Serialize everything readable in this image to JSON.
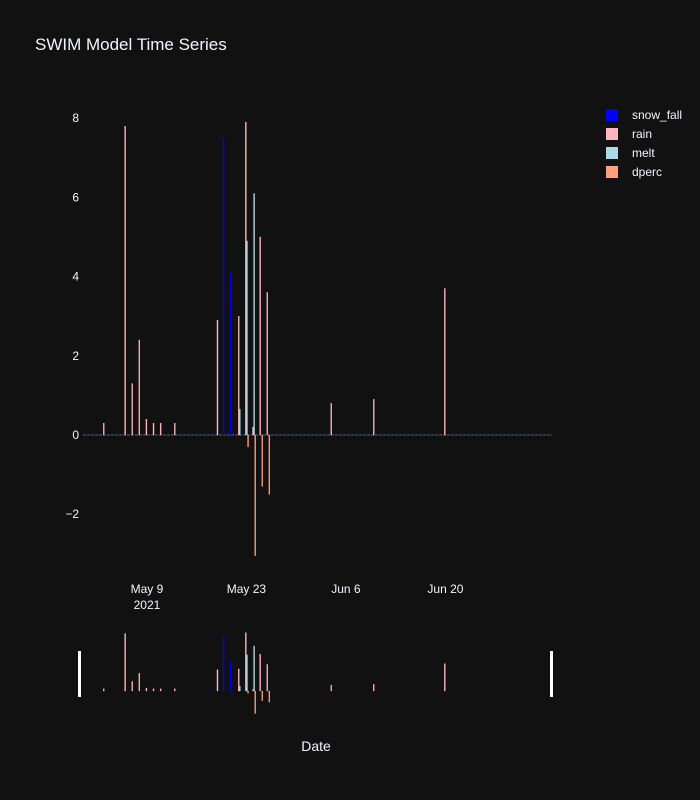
{
  "chart_data": {
    "type": "bar",
    "title": "SWIM Model Time Series",
    "xlabel": "Date",
    "ylabel": "",
    "x_range": [
      "2021-04-30",
      "2021-07-05"
    ],
    "ylim": [
      -3.5,
      8.5
    ],
    "y_ticks": [
      -2,
      0,
      2,
      4,
      6,
      8
    ],
    "y_tick_labels": [
      "−2",
      "0",
      "2",
      "4",
      "6",
      "8"
    ],
    "x_ticks": [
      {
        "date": "2021-05-09",
        "label": "May 9",
        "sublabel": "2021"
      },
      {
        "date": "2021-05-23",
        "label": "May 23",
        "sublabel": ""
      },
      {
        "date": "2021-06-06",
        "label": "Jun 6",
        "sublabel": ""
      },
      {
        "date": "2021-06-20",
        "label": "Jun 20",
        "sublabel": ""
      }
    ],
    "grid": false,
    "legend_position": "top-right",
    "rangeslider": true,
    "series": [
      {
        "name": "snow_fall",
        "color": "#0000ff",
        "points": [
          {
            "x": "2021-05-20",
            "y": 7.5
          },
          {
            "x": "2021-05-21",
            "y": 4.1
          }
        ]
      },
      {
        "name": "rain",
        "color": "#ffb6c1",
        "points": [
          {
            "x": "2021-05-03",
            "y": 0.3
          },
          {
            "x": "2021-05-06",
            "y": 7.8
          },
          {
            "x": "2021-05-07",
            "y": 1.3
          },
          {
            "x": "2021-05-08",
            "y": 2.4
          },
          {
            "x": "2021-05-09",
            "y": 0.4
          },
          {
            "x": "2021-05-10",
            "y": 0.3
          },
          {
            "x": "2021-05-11",
            "y": 0.3
          },
          {
            "x": "2021-05-13",
            "y": 0.3
          },
          {
            "x": "2021-05-19",
            "y": 2.9
          },
          {
            "x": "2021-05-22",
            "y": 3.0
          },
          {
            "x": "2021-05-23",
            "y": 7.9
          },
          {
            "x": "2021-05-24",
            "y": 0.2
          },
          {
            "x": "2021-05-25",
            "y": 5.0
          },
          {
            "x": "2021-05-26",
            "y": 3.6
          },
          {
            "x": "2021-06-04",
            "y": 0.8
          },
          {
            "x": "2021-06-10",
            "y": 0.9
          },
          {
            "x": "2021-06-20",
            "y": 3.7
          }
        ]
      },
      {
        "name": "melt",
        "color": "#add8e6",
        "points": [
          {
            "x": "2021-05-22",
            "y": 0.65
          },
          {
            "x": "2021-05-23",
            "y": 4.9
          },
          {
            "x": "2021-05-24",
            "y": 6.1
          }
        ]
      },
      {
        "name": "dperc",
        "color": "#ffa07a",
        "points": [
          {
            "x": "2021-05-23",
            "y": -0.3
          },
          {
            "x": "2021-05-24",
            "y": -3.05
          },
          {
            "x": "2021-05-25",
            "y": -1.3
          },
          {
            "x": "2021-05-26",
            "y": -1.5
          }
        ]
      }
    ]
  }
}
